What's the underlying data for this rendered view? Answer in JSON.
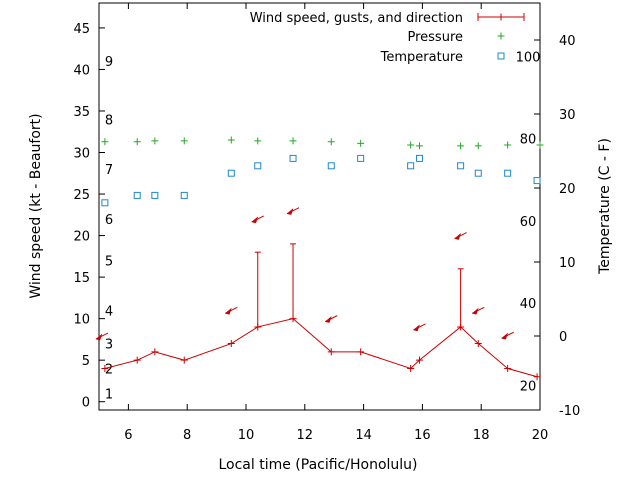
{
  "chart_data": {
    "type": "line",
    "title": "",
    "xlabel": "Local time (Pacific/Honolulu)",
    "ylabel_left": "Wind speed (kt - Beaufort)",
    "ylabel_right": "Temperature (C - F)",
    "x_range": [
      5,
      20
    ],
    "y_left_range": [
      -1,
      48
    ],
    "y_right_range": [
      -10,
      45
    ],
    "x_ticks": [
      6,
      8,
      10,
      12,
      14,
      16,
      18,
      20
    ],
    "y_left_ticks": [
      0,
      5,
      10,
      15,
      20,
      25,
      30,
      35,
      40,
      45
    ],
    "y_right_ticks": [
      -10,
      0,
      10,
      20,
      30,
      40
    ],
    "beaufort_labels": [
      {
        "label": "1",
        "value": 1
      },
      {
        "label": "2",
        "value": 4
      },
      {
        "label": "3",
        "value": 7
      },
      {
        "label": "4",
        "value": 11
      },
      {
        "label": "5",
        "value": 17
      },
      {
        "label": "6",
        "value": 22
      },
      {
        "label": "7",
        "value": 28
      },
      {
        "label": "8",
        "value": 34
      },
      {
        "label": "9",
        "value": 41
      }
    ],
    "fahrenheit_labels": [
      {
        "label": "20",
        "value": -6.667
      },
      {
        "label": "40",
        "value": 4.444
      },
      {
        "label": "60",
        "value": 15.556
      },
      {
        "label": "80",
        "value": 26.667
      },
      {
        "label": "100",
        "value": 37.778
      }
    ],
    "legend": [
      {
        "name": "Wind speed, gusts, and direction",
        "color": "#cc0000"
      },
      {
        "name": "Pressure",
        "color": "#22aa22"
      },
      {
        "name": "Temperature",
        "color": "#1e88c8"
      }
    ],
    "wind": {
      "x": [
        5.2,
        6.3,
        6.9,
        7.9,
        9.5,
        10.4,
        11.6,
        12.9,
        13.9,
        15.6,
        15.9,
        17.3,
        17.9,
        18.9,
        19.9
      ],
      "speed": [
        4,
        5,
        6,
        5,
        7,
        9,
        10,
        6,
        6,
        4,
        5,
        9,
        7,
        4,
        3
      ],
      "gust": [
        null,
        null,
        null,
        null,
        null,
        18,
        19,
        null,
        null,
        null,
        null,
        16,
        null,
        null,
        null
      ]
    },
    "wind_arrows": [
      {
        "x": 5.1,
        "y": 7.9
      },
      {
        "x": 9.5,
        "y": 11
      },
      {
        "x": 10.4,
        "y": 22
      },
      {
        "x": 11.6,
        "y": 23
      },
      {
        "x": 12.9,
        "y": 10
      },
      {
        "x": 15.9,
        "y": 9
      },
      {
        "x": 17.3,
        "y": 20
      },
      {
        "x": 17.9,
        "y": 11
      },
      {
        "x": 18.9,
        "y": 8
      }
    ],
    "pressure": {
      "x": [
        5.2,
        6.3,
        6.9,
        7.9,
        9.5,
        10.4,
        11.6,
        12.9,
        13.9,
        15.6,
        15.9,
        17.3,
        17.9,
        18.9,
        20.0
      ],
      "y": [
        31.3,
        31.3,
        31.4,
        31.4,
        31.5,
        31.4,
        31.4,
        31.3,
        31.1,
        30.9,
        30.8,
        30.8,
        30.8,
        30.9,
        30.9
      ]
    },
    "temperature": {
      "x": [
        5.2,
        6.3,
        6.9,
        7.9,
        9.5,
        10.4,
        11.6,
        12.9,
        13.9,
        15.6,
        15.9,
        17.3,
        17.9,
        18.9,
        19.9
      ],
      "y": [
        18,
        19,
        19,
        19,
        22,
        23,
        24,
        23,
        24,
        23,
        24,
        23,
        22,
        22,
        21
      ]
    }
  }
}
